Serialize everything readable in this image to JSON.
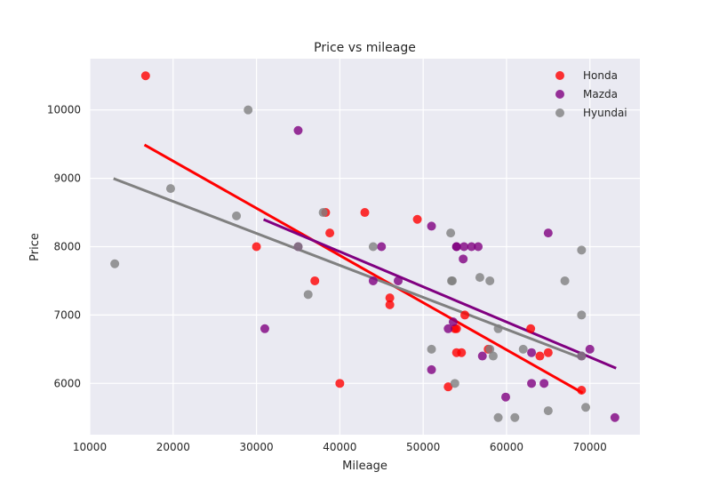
{
  "chart_data": {
    "type": "scatter",
    "title": "Price vs mileage",
    "xlabel": "Mileage",
    "ylabel": "Price",
    "xlim": [
      10000,
      76000
    ],
    "ylim": [
      5250,
      10750
    ],
    "xticks": [
      10000,
      20000,
      30000,
      40000,
      50000,
      60000,
      70000
    ],
    "yticks": [
      6000,
      7000,
      8000,
      9000,
      10000
    ],
    "xtick_labels": [
      "10000",
      "20000",
      "30000",
      "40000",
      "50000",
      "60000",
      "70000"
    ],
    "ytick_labels": [
      "6000",
      "7000",
      "8000",
      "9000",
      "10000"
    ],
    "grid": true,
    "legend_position": "top-right",
    "series": [
      {
        "name": "Honda",
        "color": "#ff0000",
        "points": [
          [
            16700,
            10500
          ],
          [
            30000,
            8000
          ],
          [
            37000,
            7500
          ],
          [
            38300,
            8500
          ],
          [
            38800,
            8200
          ],
          [
            40000,
            6000
          ],
          [
            43000,
            8500
          ],
          [
            46000,
            7250
          ],
          [
            46000,
            7150
          ],
          [
            49300,
            8400
          ],
          [
            53000,
            5950
          ],
          [
            53800,
            6800
          ],
          [
            54000,
            6800
          ],
          [
            54000,
            6450
          ],
          [
            54600,
            6450
          ],
          [
            55000,
            7000
          ],
          [
            57800,
            6500
          ],
          [
            62900,
            6800
          ],
          [
            64000,
            6400
          ],
          [
            65000,
            6450
          ],
          [
            69000,
            5900
          ]
        ],
        "fit": [
          [
            16700,
            9480
          ],
          [
            69000,
            5870
          ]
        ]
      },
      {
        "name": "Mazda",
        "color": "#800080",
        "points": [
          [
            31000,
            6800
          ],
          [
            35000,
            9700
          ],
          [
            35000,
            8000
          ],
          [
            44000,
            7500
          ],
          [
            45000,
            8000
          ],
          [
            47000,
            7500
          ],
          [
            51000,
            8300
          ],
          [
            51000,
            6200
          ],
          [
            53000,
            6800
          ],
          [
            53600,
            6900
          ],
          [
            54000,
            8000
          ],
          [
            54000,
            8000
          ],
          [
            54900,
            8000
          ],
          [
            54800,
            7820
          ],
          [
            55800,
            8000
          ],
          [
            56600,
            8000
          ],
          [
            57100,
            6400
          ],
          [
            59900,
            5800
          ],
          [
            63000,
            6450
          ],
          [
            63000,
            6000
          ],
          [
            64500,
            6000
          ],
          [
            65000,
            8200
          ],
          [
            69000,
            6400
          ],
          [
            70000,
            6500
          ],
          [
            73000,
            5500
          ]
        ],
        "fit": [
          [
            31000,
            8390
          ],
          [
            73000,
            6230
          ]
        ]
      },
      {
        "name": "Hyundai",
        "color": "#808080",
        "points": [
          [
            13000,
            7750
          ],
          [
            19700,
            8850
          ],
          [
            27600,
            8450
          ],
          [
            29000,
            10000
          ],
          [
            35000,
            8000
          ],
          [
            36200,
            7300
          ],
          [
            38000,
            8500
          ],
          [
            44000,
            8000
          ],
          [
            51000,
            6500
          ],
          [
            53300,
            8200
          ],
          [
            53400,
            7500
          ],
          [
            53500,
            7500
          ],
          [
            53800,
            6000
          ],
          [
            56800,
            7550
          ],
          [
            58000,
            7500
          ],
          [
            58000,
            6500
          ],
          [
            58400,
            6400
          ],
          [
            59000,
            6800
          ],
          [
            59000,
            5500
          ],
          [
            61000,
            5500
          ],
          [
            62000,
            6500
          ],
          [
            65000,
            5600
          ],
          [
            67000,
            7500
          ],
          [
            69000,
            7950
          ],
          [
            69000,
            7000
          ],
          [
            69000,
            6400
          ],
          [
            69500,
            5650
          ]
        ],
        "fit": [
          [
            13000,
            8990
          ],
          [
            69000,
            6370
          ]
        ]
      }
    ]
  }
}
